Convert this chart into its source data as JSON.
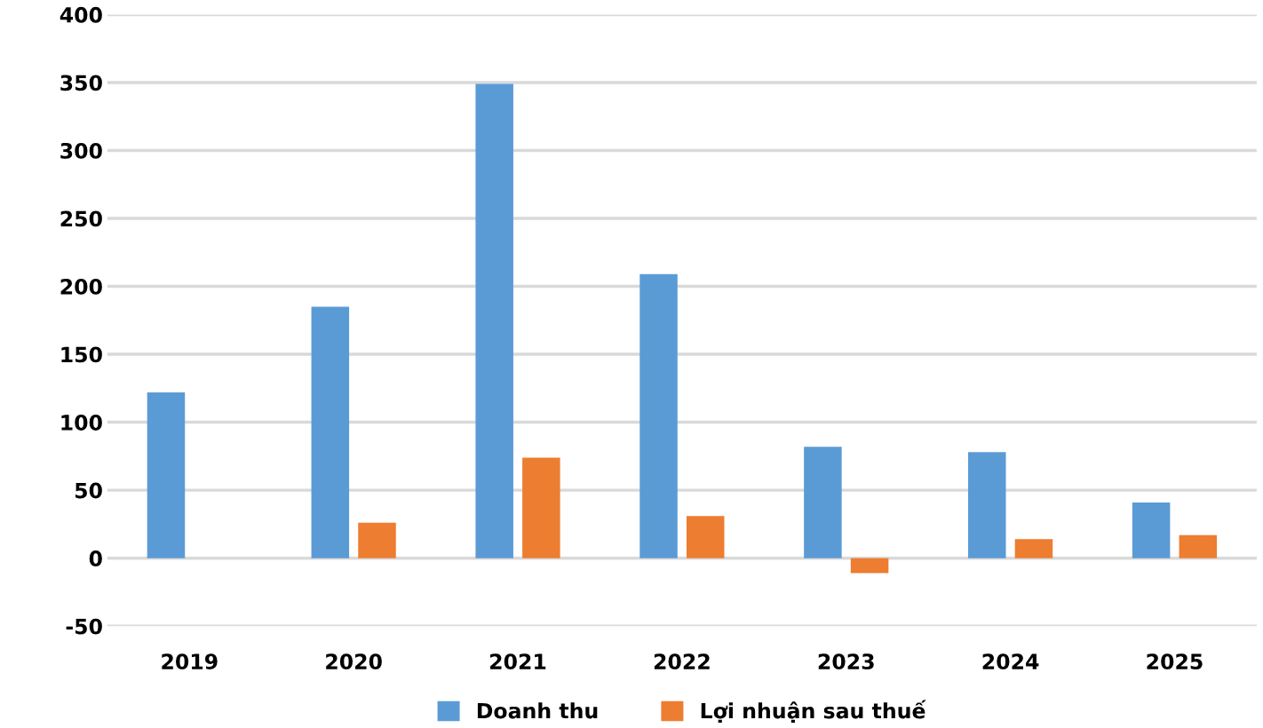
{
  "chart_data": {
    "type": "bar",
    "categories": [
      "2019",
      "2020",
      "2021",
      "2022",
      "2023",
      "2024",
      "2025"
    ],
    "series": [
      {
        "name": "Doanh thu",
        "color": "#5b9bd5",
        "values": [
          122,
          185,
          349,
          209,
          82,
          78,
          41
        ]
      },
      {
        "name": "Lợi nhuận sau thuế",
        "color": "#ed7d31",
        "values": [
          null,
          26,
          74,
          31,
          -11,
          14,
          17
        ]
      }
    ],
    "ylim": [
      -50,
      400
    ],
    "yticks": [
      -50,
      0,
      50,
      100,
      150,
      200,
      250,
      300,
      350,
      400
    ],
    "grid": "y",
    "legend": "bottom"
  }
}
